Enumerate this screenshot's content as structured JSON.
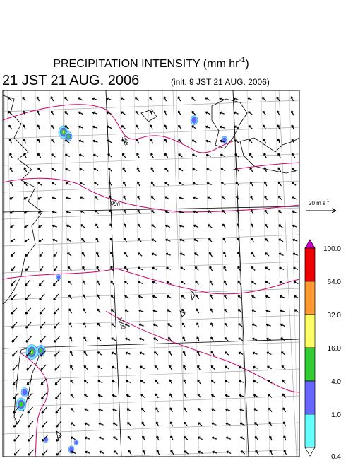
{
  "title": {
    "main": "PRECIPITATION INTENSITY (mm hr",
    "sup": "-1",
    "end": ")"
  },
  "time": "21 JST 21 AUG. 2006",
  "init": "(init. 9 JST 21 AUG. 2006)",
  "wind_scale": {
    "label": "20 m s",
    "sup": "-1"
  },
  "contour_labels": [
    "998",
    "996",
    "1000"
  ],
  "colorbar": {
    "labels": [
      "100.0",
      "64.0",
      "32.0",
      "16.0",
      "4.0",
      "1.0",
      "0.4"
    ],
    "colors": [
      "#cc00cc",
      "#ee0000",
      "#ff9933",
      "#ffff66",
      "#33cc33",
      "#6666ff",
      "#66ffff",
      "#ffffff"
    ]
  }
}
